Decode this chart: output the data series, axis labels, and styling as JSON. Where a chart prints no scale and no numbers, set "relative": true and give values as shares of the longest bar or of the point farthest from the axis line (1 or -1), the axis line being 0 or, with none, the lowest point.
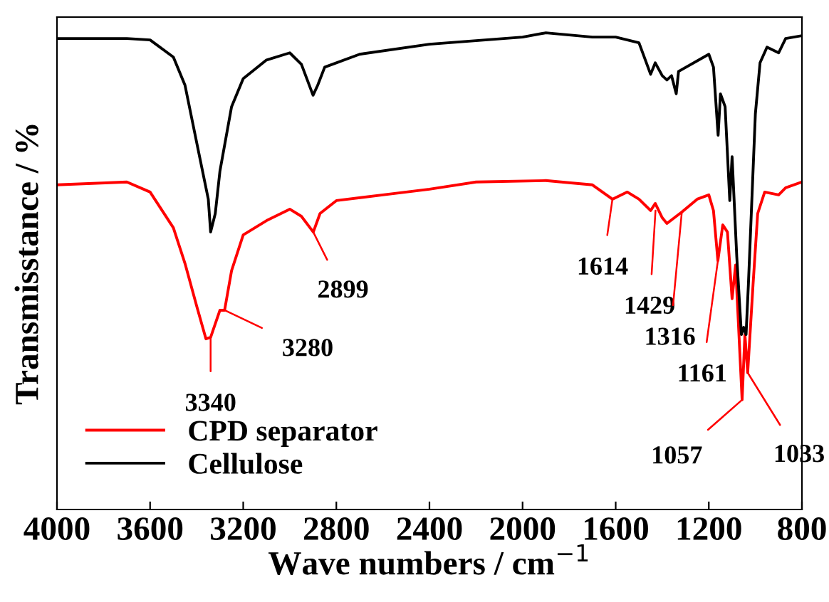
{
  "chart_data": {
    "type": "line",
    "relative": true,
    "xlabel": "Wave numbers / cm$^{−1}$",
    "ylabel": "Transmisstance / %",
    "xlim": [
      4000,
      800
    ],
    "xticks": [
      4000,
      3600,
      3200,
      2800,
      2400,
      2000,
      1600,
      1200,
      800
    ],
    "tick_labels": "x",
    "grid": false,
    "legend": "bottom left",
    "line_style": "solid",
    "marker": "none",
    "series": [
      {
        "name": "CPD separator",
        "color": "#ff0000",
        "x": [
          4000,
          3700,
          3600,
          3500,
          3450,
          3400,
          3360,
          3340,
          3300,
          3280,
          3250,
          3200,
          3100,
          3000,
          2950,
          2899,
          2870,
          2800,
          2600,
          2400,
          2200,
          1900,
          1700,
          1614,
          1550,
          1500,
          1450,
          1430,
          1400,
          1380,
          1316,
          1250,
          1200,
          1180,
          1161,
          1140,
          1120,
          1100,
          1085,
          1057,
          1045,
          1033,
          1010,
          990,
          960,
          900,
          870,
          800
        ],
        "values": [
          0.681,
          0.687,
          0.666,
          0.591,
          0.516,
          0.427,
          0.358,
          0.361,
          0.418,
          0.418,
          0.501,
          0.576,
          0.606,
          0.63,
          0.615,
          0.582,
          0.621,
          0.648,
          0.66,
          0.672,
          0.687,
          0.69,
          0.681,
          0.651,
          0.666,
          0.651,
          0.627,
          0.642,
          0.612,
          0.6,
          0.624,
          0.651,
          0.66,
          0.627,
          0.522,
          0.597,
          0.582,
          0.442,
          0.513,
          0.23,
          0.367,
          0.287,
          0.472,
          0.621,
          0.666,
          0.66,
          0.675,
          0.687
        ]
      },
      {
        "name": "Cellulose",
        "color": "#000000",
        "x": [
          4000,
          3700,
          3600,
          3500,
          3450,
          3400,
          3350,
          3340,
          3320,
          3300,
          3250,
          3200,
          3100,
          3000,
          2950,
          2900,
          2880,
          2850,
          2700,
          2400,
          2000,
          1900,
          1700,
          1600,
          1500,
          1450,
          1430,
          1400,
          1380,
          1360,
          1340,
          1330,
          1200,
          1180,
          1160,
          1150,
          1130,
          1110,
          1100,
          1080,
          1060,
          1050,
          1040,
          1030,
          1000,
          980,
          950,
          900,
          870,
          800
        ],
        "values": [
          0.988,
          0.988,
          0.985,
          0.949,
          0.89,
          0.77,
          0.651,
          0.582,
          0.621,
          0.71,
          0.845,
          0.904,
          0.943,
          0.958,
          0.934,
          0.869,
          0.89,
          0.928,
          0.955,
          0.976,
          0.991,
          1.0,
          0.991,
          0.991,
          0.979,
          0.913,
          0.937,
          0.91,
          0.901,
          0.91,
          0.872,
          0.919,
          0.955,
          0.928,
          0.785,
          0.872,
          0.845,
          0.648,
          0.74,
          0.531,
          0.367,
          0.382,
          0.367,
          0.472,
          0.83,
          0.937,
          0.97,
          0.958,
          0.988,
          0.994
        ]
      }
    ],
    "annotations": [
      {
        "text": "3340",
        "x": 3340,
        "y": 0.361
      },
      {
        "text": "3280",
        "x": 3280,
        "y": 0.418
      },
      {
        "text": "2899",
        "x": 2899,
        "y": 0.582
      },
      {
        "text": "1614",
        "x": 1614,
        "y": 0.651
      },
      {
        "text": "1429",
        "x": 1429,
        "y": 0.627
      },
      {
        "text": "1316",
        "x": 1316,
        "y": 0.624
      },
      {
        "text": "1161",
        "x": 1161,
        "y": 0.522
      },
      {
        "text": "1057",
        "x": 1057,
        "y": 0.23
      },
      {
        "text": "1033",
        "x": 1033,
        "y": 0.287
      }
    ]
  }
}
